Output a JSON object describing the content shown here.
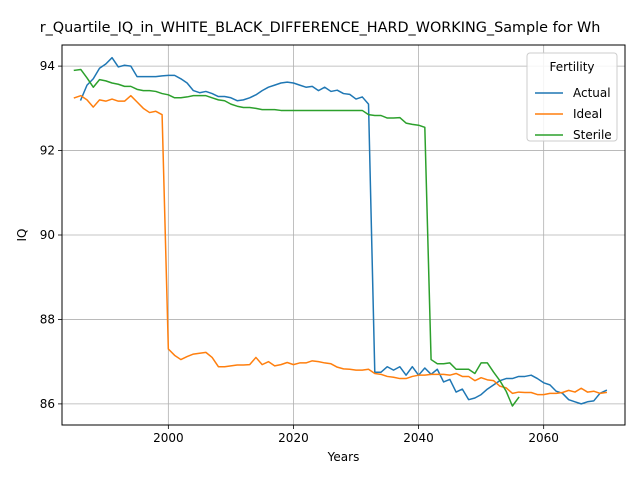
{
  "chart_data": {
    "type": "line",
    "title": "r_Quartile_IQ_in_WHITE_BLACK_DIFFERENCE_HARD_WORKING_Sample for Wh",
    "xlabel": "Years",
    "ylabel": "IQ",
    "xlim": [
      1983,
      2073
    ],
    "ylim": [
      85.5,
      94.5
    ],
    "xticks": [
      2000,
      2020,
      2040,
      2060
    ],
    "yticks": [
      86,
      88,
      90,
      92,
      94
    ],
    "grid": true,
    "legend": {
      "title": "Fertility",
      "position": "top-right"
    },
    "series": [
      {
        "name": "Actual",
        "color": "#1f77b4",
        "points": [
          [
            1986,
            93.2
          ],
          [
            1987,
            93.55
          ],
          [
            1988,
            93.7
          ],
          [
            1989,
            93.95
          ],
          [
            1990,
            94.05
          ],
          [
            1991,
            94.2
          ],
          [
            1992,
            93.98
          ],
          [
            1993,
            94.02
          ],
          [
            1994,
            94.0
          ],
          [
            1995,
            93.75
          ],
          [
            1996,
            93.75
          ],
          [
            1997,
            93.75
          ],
          [
            1998,
            93.75
          ],
          [
            1999,
            93.77
          ],
          [
            2000,
            93.78
          ],
          [
            2001,
            93.78
          ],
          [
            2002,
            93.7
          ],
          [
            2003,
            93.6
          ],
          [
            2004,
            93.42
          ],
          [
            2005,
            93.37
          ],
          [
            2006,
            93.4
          ],
          [
            2007,
            93.35
          ],
          [
            2008,
            93.28
          ],
          [
            2009,
            93.28
          ],
          [
            2010,
            93.25
          ],
          [
            2011,
            93.18
          ],
          [
            2012,
            93.2
          ],
          [
            2013,
            93.25
          ],
          [
            2014,
            93.32
          ],
          [
            2015,
            93.42
          ],
          [
            2016,
            93.5
          ],
          [
            2017,
            93.55
          ],
          [
            2018,
            93.6
          ],
          [
            2019,
            93.62
          ],
          [
            2020,
            93.6
          ],
          [
            2021,
            93.55
          ],
          [
            2022,
            93.5
          ],
          [
            2023,
            93.52
          ],
          [
            2024,
            93.42
          ],
          [
            2025,
            93.5
          ],
          [
            2026,
            93.4
          ],
          [
            2027,
            93.43
          ],
          [
            2028,
            93.35
          ],
          [
            2029,
            93.33
          ],
          [
            2030,
            93.22
          ],
          [
            2031,
            93.27
          ],
          [
            2032,
            93.1
          ],
          [
            2033,
            86.75
          ],
          [
            2034,
            86.75
          ],
          [
            2035,
            86.88
          ],
          [
            2036,
            86.8
          ],
          [
            2037,
            86.88
          ],
          [
            2038,
            86.68
          ],
          [
            2039,
            86.88
          ],
          [
            2040,
            86.68
          ],
          [
            2041,
            86.85
          ],
          [
            2042,
            86.7
          ],
          [
            2043,
            86.82
          ],
          [
            2044,
            86.52
          ],
          [
            2045,
            86.58
          ],
          [
            2046,
            86.28
          ],
          [
            2047,
            86.35
          ],
          [
            2048,
            86.1
          ],
          [
            2049,
            86.14
          ],
          [
            2050,
            86.22
          ],
          [
            2051,
            86.35
          ],
          [
            2052,
            86.45
          ],
          [
            2053,
            86.55
          ],
          [
            2054,
            86.6
          ],
          [
            2055,
            86.6
          ],
          [
            2056,
            86.65
          ],
          [
            2057,
            86.65
          ],
          [
            2058,
            86.68
          ],
          [
            2059,
            86.6
          ],
          [
            2060,
            86.5
          ],
          [
            2061,
            86.45
          ],
          [
            2062,
            86.3
          ],
          [
            2063,
            86.25
          ],
          [
            2064,
            86.1
          ],
          [
            2065,
            86.05
          ],
          [
            2066,
            86.0
          ],
          [
            2067,
            86.05
          ],
          [
            2068,
            86.07
          ],
          [
            2069,
            86.25
          ],
          [
            2070,
            86.32
          ]
        ]
      },
      {
        "name": "Ideal",
        "color": "#ff7f0e",
        "points": [
          [
            1985,
            93.25
          ],
          [
            1986,
            93.3
          ],
          [
            1987,
            93.2
          ],
          [
            1988,
            93.03
          ],
          [
            1989,
            93.2
          ],
          [
            1990,
            93.17
          ],
          [
            1991,
            93.22
          ],
          [
            1992,
            93.17
          ],
          [
            1993,
            93.17
          ],
          [
            1994,
            93.3
          ],
          [
            1995,
            93.15
          ],
          [
            1996,
            93.0
          ],
          [
            1997,
            92.9
          ],
          [
            1998,
            92.93
          ],
          [
            1999,
            92.85
          ],
          [
            2000,
            87.3
          ],
          [
            2001,
            87.15
          ],
          [
            2002,
            87.05
          ],
          [
            2003,
            87.12
          ],
          [
            2004,
            87.18
          ],
          [
            2005,
            87.2
          ],
          [
            2006,
            87.22
          ],
          [
            2007,
            87.1
          ],
          [
            2008,
            86.88
          ],
          [
            2009,
            86.88
          ],
          [
            2010,
            86.9
          ],
          [
            2011,
            86.92
          ],
          [
            2012,
            86.92
          ],
          [
            2013,
            86.93
          ],
          [
            2014,
            87.1
          ],
          [
            2015,
            86.93
          ],
          [
            2016,
            87.0
          ],
          [
            2017,
            86.9
          ],
          [
            2018,
            86.93
          ],
          [
            2019,
            86.98
          ],
          [
            2020,
            86.93
          ],
          [
            2021,
            86.97
          ],
          [
            2022,
            86.97
          ],
          [
            2023,
            87.02
          ],
          [
            2024,
            87.0
          ],
          [
            2025,
            86.97
          ],
          [
            2026,
            86.95
          ],
          [
            2027,
            86.87
          ],
          [
            2028,
            86.83
          ],
          [
            2029,
            86.82
          ],
          [
            2030,
            86.8
          ],
          [
            2031,
            86.8
          ],
          [
            2032,
            86.82
          ],
          [
            2033,
            86.72
          ],
          [
            2034,
            86.7
          ],
          [
            2035,
            86.65
          ],
          [
            2036,
            86.63
          ],
          [
            2037,
            86.6
          ],
          [
            2038,
            86.6
          ],
          [
            2039,
            86.65
          ],
          [
            2040,
            86.68
          ],
          [
            2041,
            86.68
          ],
          [
            2042,
            86.7
          ],
          [
            2043,
            86.7
          ],
          [
            2044,
            86.7
          ],
          [
            2045,
            86.68
          ],
          [
            2046,
            86.72
          ],
          [
            2047,
            86.65
          ],
          [
            2048,
            86.65
          ],
          [
            2049,
            86.55
          ],
          [
            2050,
            86.62
          ],
          [
            2051,
            86.57
          ],
          [
            2052,
            86.55
          ],
          [
            2053,
            86.42
          ],
          [
            2054,
            86.38
          ],
          [
            2055,
            86.25
          ],
          [
            2056,
            86.28
          ],
          [
            2057,
            86.27
          ],
          [
            2058,
            86.27
          ],
          [
            2059,
            86.22
          ],
          [
            2060,
            86.22
          ],
          [
            2061,
            86.25
          ],
          [
            2062,
            86.25
          ],
          [
            2063,
            86.27
          ],
          [
            2064,
            86.32
          ],
          [
            2065,
            86.28
          ],
          [
            2066,
            86.37
          ],
          [
            2067,
            86.28
          ],
          [
            2068,
            86.3
          ],
          [
            2069,
            86.25
          ],
          [
            2070,
            86.27
          ]
        ]
      },
      {
        "name": "Sterile",
        "color": "#2ca02c",
        "points": [
          [
            1985,
            93.9
          ],
          [
            1986,
            93.92
          ],
          [
            1987,
            93.72
          ],
          [
            1988,
            93.5
          ],
          [
            1989,
            93.68
          ],
          [
            1990,
            93.65
          ],
          [
            1991,
            93.6
          ],
          [
            1992,
            93.57
          ],
          [
            1993,
            93.52
          ],
          [
            1994,
            93.52
          ],
          [
            1995,
            93.45
          ],
          [
            1996,
            93.42
          ],
          [
            1997,
            93.42
          ],
          [
            1998,
            93.4
          ],
          [
            1999,
            93.35
          ],
          [
            2000,
            93.32
          ],
          [
            2001,
            93.25
          ],
          [
            2002,
            93.25
          ],
          [
            2003,
            93.27
          ],
          [
            2004,
            93.3
          ],
          [
            2005,
            93.3
          ],
          [
            2006,
            93.3
          ],
          [
            2007,
            93.25
          ],
          [
            2008,
            93.2
          ],
          [
            2009,
            93.18
          ],
          [
            2010,
            93.1
          ],
          [
            2011,
            93.05
          ],
          [
            2012,
            93.02
          ],
          [
            2013,
            93.02
          ],
          [
            2014,
            93.0
          ],
          [
            2015,
            92.97
          ],
          [
            2016,
            92.97
          ],
          [
            2017,
            92.97
          ],
          [
            2018,
            92.95
          ],
          [
            2019,
            92.95
          ],
          [
            2020,
            92.95
          ],
          [
            2021,
            92.95
          ],
          [
            2022,
            92.95
          ],
          [
            2023,
            92.95
          ],
          [
            2024,
            92.95
          ],
          [
            2025,
            92.95
          ],
          [
            2026,
            92.95
          ],
          [
            2027,
            92.95
          ],
          [
            2028,
            92.95
          ],
          [
            2029,
            92.95
          ],
          [
            2030,
            92.95
          ],
          [
            2031,
            92.95
          ],
          [
            2032,
            92.85
          ],
          [
            2033,
            92.83
          ],
          [
            2034,
            92.83
          ],
          [
            2035,
            92.77
          ],
          [
            2036,
            92.77
          ],
          [
            2037,
            92.78
          ],
          [
            2038,
            92.65
          ],
          [
            2039,
            92.62
          ],
          [
            2040,
            92.6
          ],
          [
            2041,
            92.55
          ],
          [
            2042,
            87.05
          ],
          [
            2043,
            86.95
          ],
          [
            2044,
            86.95
          ],
          [
            2045,
            86.97
          ],
          [
            2046,
            86.82
          ],
          [
            2047,
            86.82
          ],
          [
            2048,
            86.82
          ],
          [
            2049,
            86.72
          ],
          [
            2050,
            86.97
          ],
          [
            2051,
            86.97
          ],
          [
            2052,
            86.75
          ],
          [
            2053,
            86.55
          ],
          [
            2054,
            86.3
          ],
          [
            2055,
            85.95
          ],
          [
            2056,
            86.15
          ]
        ]
      }
    ]
  }
}
